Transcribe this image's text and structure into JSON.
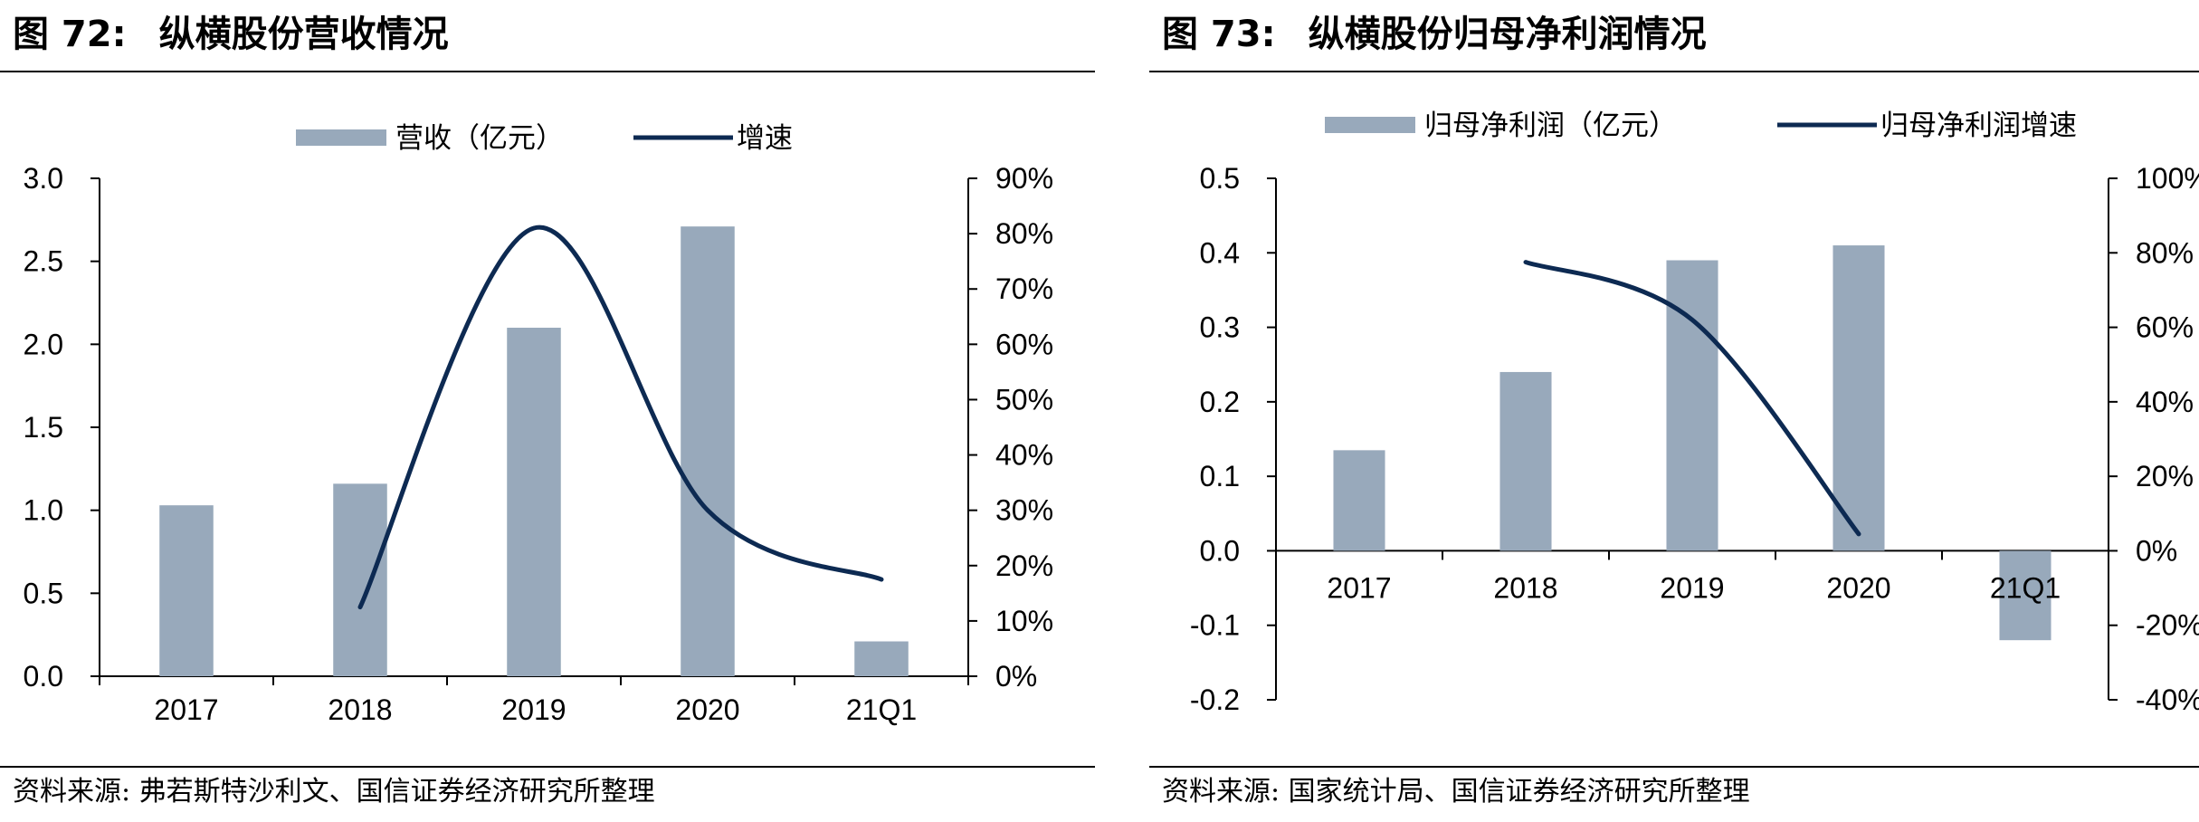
{
  "figures": [
    {
      "number": "图 72:",
      "title": "纵横股份营收情况",
      "source": "资料来源: 弗若斯特沙利文、国信证券经济研究所整理"
    },
    {
      "number": "图 73:",
      "title": "纵横股份归母净利润情况",
      "source": "资料来源: 国家统计局、国信证券经济研究所整理"
    }
  ],
  "chart_data": [
    {
      "type": "bar",
      "categories": [
        "2017",
        "2018",
        "2019",
        "2020",
        "21Q1"
      ],
      "series": [
        {
          "name": "营收（亿元）",
          "type": "bar",
          "axis": "left",
          "color": "#98a9bb",
          "values": [
            1.03,
            1.16,
            2.1,
            2.71,
            0.21
          ]
        },
        {
          "name": "增速",
          "type": "line",
          "axis": "right",
          "color": "#0d2a52",
          "values": [
            null,
            0.125,
            0.81,
            0.3,
            0.175
          ]
        }
      ],
      "left_axis": {
        "min": 0,
        "max": 3.0,
        "ticks": [
          "0.0",
          "0.5",
          "1.0",
          "1.5",
          "2.0",
          "2.5",
          "3.0"
        ]
      },
      "right_axis": {
        "min": 0,
        "max": 0.9,
        "ticks": [
          "0%",
          "10%",
          "20%",
          "30%",
          "40%",
          "50%",
          "60%",
          "70%",
          "80%",
          "90%"
        ]
      },
      "legend": "top-center",
      "grid": false
    },
    {
      "type": "bar",
      "categories": [
        "2017",
        "2018",
        "2019",
        "2020",
        "21Q1"
      ],
      "series": [
        {
          "name": "归母净利润（亿元）",
          "type": "bar",
          "axis": "left",
          "color": "#98a9bb",
          "values": [
            0.135,
            0.24,
            0.39,
            0.41,
            -0.12
          ]
        },
        {
          "name": "归母净利润增速",
          "type": "line",
          "axis": "right",
          "color": "#0d2a52",
          "values": [
            null,
            0.775,
            0.62,
            0.045,
            null
          ]
        }
      ],
      "left_axis": {
        "min": -0.2,
        "max": 0.5,
        "ticks": [
          "-0.2",
          "-0.1",
          "0.0",
          "0.1",
          "0.2",
          "0.3",
          "0.4",
          "0.5"
        ]
      },
      "right_axis": {
        "min": -0.4,
        "max": 1.0,
        "ticks": [
          "-40%",
          "-20%",
          "0%",
          "20%",
          "40%",
          "60%",
          "80%",
          "100%"
        ]
      },
      "legend": "top-center",
      "grid": false
    }
  ]
}
